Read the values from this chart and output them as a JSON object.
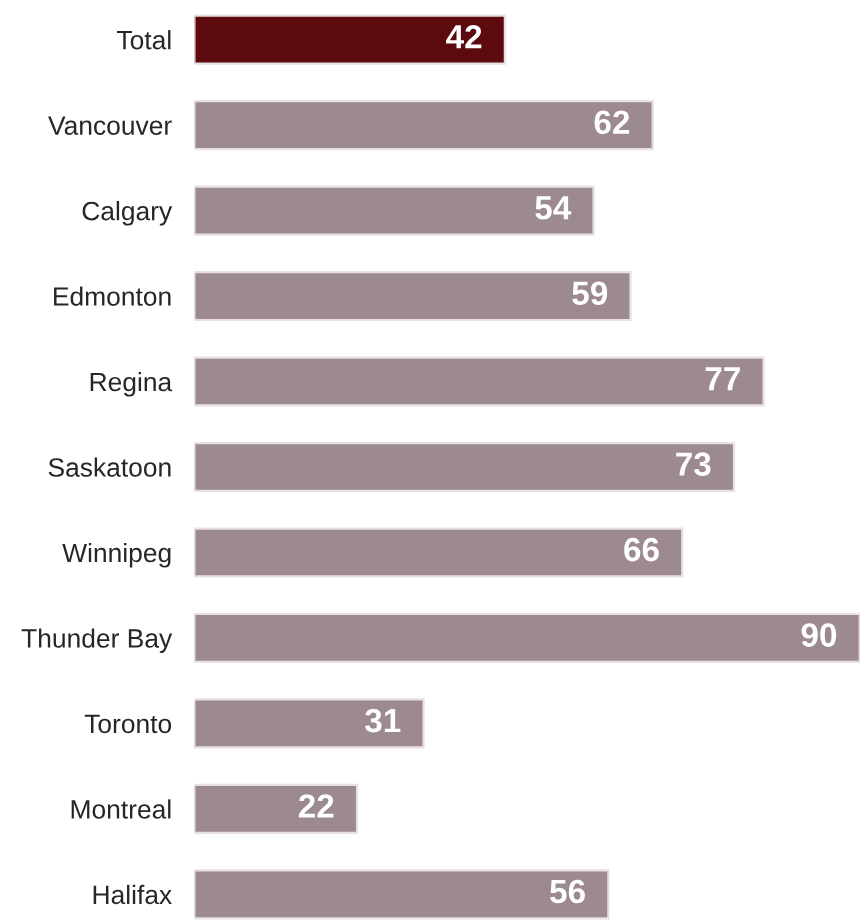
{
  "chart_data": {
    "type": "bar",
    "orientation": "horizontal",
    "categories": [
      "Total",
      "Vancouver",
      "Calgary",
      "Edmonton",
      "Regina",
      "Saskatoon",
      "Winnipeg",
      "Thunder Bay",
      "Toronto",
      "Montreal",
      "Halifax"
    ],
    "values": [
      42,
      62,
      54,
      59,
      77,
      73,
      66,
      90,
      31,
      22,
      56
    ],
    "colors": [
      "#5c0a0e",
      "#9c8a8e",
      "#9c8a8e",
      "#9c8a8e",
      "#9c8a8e",
      "#9c8a8e",
      "#9c8a8e",
      "#9c8a8e",
      "#9c8a8e",
      "#9c8a8e",
      "#9c8a8e"
    ],
    "data_labels": true
  }
}
